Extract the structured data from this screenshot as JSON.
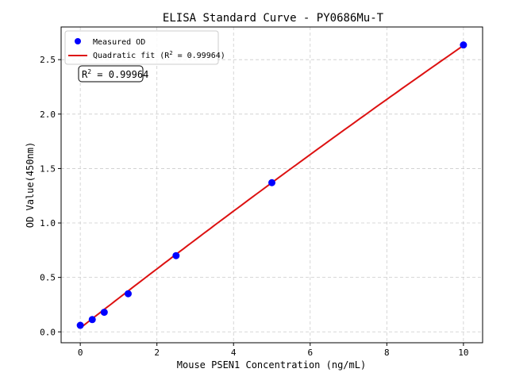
{
  "chart_data": {
    "type": "scatter",
    "title": "ELISA Standard Curve - PY0686Mu-T",
    "xlabel": "Mouse PSEN1 Concentration (ng/mL)",
    "ylabel": "OD Value(450nm)",
    "xlim": [
      -0.5,
      10.5
    ],
    "ylim": [
      -0.1,
      2.8
    ],
    "xticks": [
      0,
      2,
      4,
      6,
      8,
      10
    ],
    "yticks": [
      0.0,
      0.5,
      1.0,
      1.5,
      2.0,
      2.5
    ],
    "xtick_labels": [
      "0",
      "2",
      "4",
      "6",
      "8",
      "10"
    ],
    "ytick_labels": [
      "0.0",
      "0.5",
      "1.0",
      "1.5",
      "2.0",
      "2.5"
    ],
    "grid": true,
    "legend_position": "top-left",
    "series": [
      {
        "name": "Measured OD",
        "kind": "scatter",
        "color": "#0000ff",
        "x": [
          0,
          0.3125,
          0.625,
          1.25,
          2.5,
          5,
          10
        ],
        "y": [
          0.06,
          0.113,
          0.18,
          0.35,
          0.7,
          1.37,
          2.635
        ]
      },
      {
        "name": "Quadratic fit (R² = 0.99964)",
        "kind": "line",
        "color": "#dd1111",
        "coefficients": {
          "a": 0.035,
          "b": 0.2745,
          "c": -0.0015
        },
        "x_range": [
          0,
          10
        ]
      }
    ],
    "annotation": {
      "prefix": "R",
      "sup": "2",
      "text": " = 0.99964"
    },
    "legend_fit_prefix": "Quadratic fit (R",
    "legend_fit_suffix": " = 0.99964)"
  }
}
